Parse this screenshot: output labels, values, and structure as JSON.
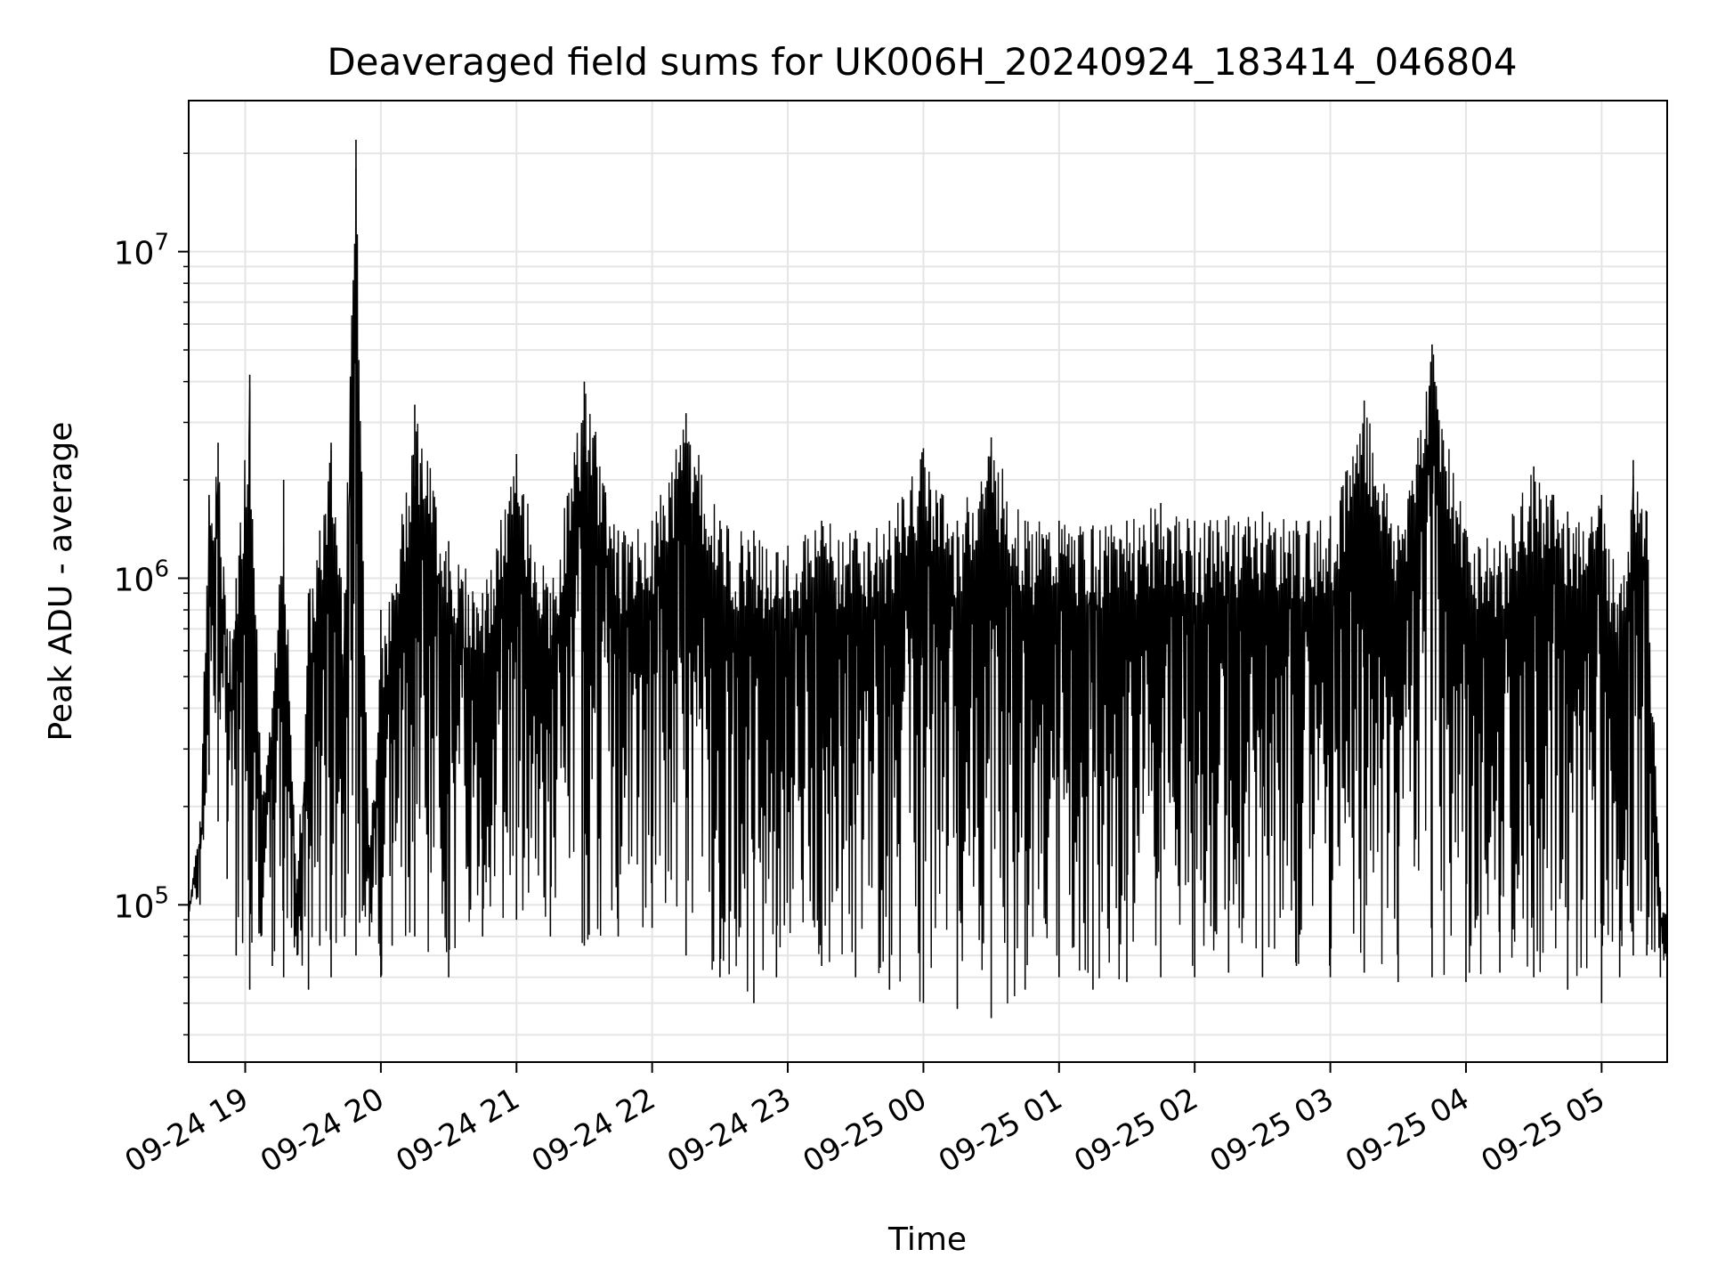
{
  "chart_data": {
    "type": "line",
    "title": "Deaveraged field sums for UK006H_20240924_183414_046804",
    "xlabel": "Time",
    "ylabel": "Peak ADU - average",
    "xscale": "time",
    "yscale": "log",
    "xlim": [
      "2024-09-24 18:35",
      "2024-09-25 05:29"
    ],
    "ylim": [
      33000,
      29000000
    ],
    "grid": true,
    "line_color": "#000000",
    "x_ticks": [
      {
        "value": "2024-09-24 19:00",
        "label": "09-24 19"
      },
      {
        "value": "2024-09-24 20:00",
        "label": "09-24 20"
      },
      {
        "value": "2024-09-24 21:00",
        "label": "09-24 21"
      },
      {
        "value": "2024-09-24 22:00",
        "label": "09-24 22"
      },
      {
        "value": "2024-09-24 23:00",
        "label": "09-24 23"
      },
      {
        "value": "2024-09-25 00:00",
        "label": "09-25 00"
      },
      {
        "value": "2024-09-25 01:00",
        "label": "09-25 01"
      },
      {
        "value": "2024-09-25 02:00",
        "label": "09-25 02"
      },
      {
        "value": "2024-09-25 03:00",
        "label": "09-25 03"
      },
      {
        "value": "2024-09-25 04:00",
        "label": "09-25 04"
      },
      {
        "value": "2024-09-25 05:00",
        "label": "09-25 05"
      }
    ],
    "y_ticks": [
      {
        "value": 100000,
        "base": "10",
        "exp": "5"
      },
      {
        "value": 1000000,
        "base": "10",
        "exp": "6"
      },
      {
        "value": 10000000,
        "base": "10",
        "exp": "7"
      }
    ],
    "series": [
      {
        "x": [
          "2024-09-24 18:35",
          "2024-09-24 18:40",
          "2024-09-24 18:44",
          "2024-09-24 18:48",
          "2024-09-24 18:52",
          "2024-09-24 18:56",
          "2024-09-24 19:02",
          "2024-09-24 19:07",
          "2024-09-24 19:12",
          "2024-09-24 19:17",
          "2024-09-24 19:23",
          "2024-09-24 19:28",
          "2024-09-24 19:33",
          "2024-09-24 19:38",
          "2024-09-24 19:44",
          "2024-09-24 19:49",
          "2024-09-24 19:55",
          "2024-09-24 20:00",
          "2024-09-24 20:05",
          "2024-09-24 20:15",
          "2024-09-24 20:30",
          "2024-09-24 20:45",
          "2024-09-24 21:00",
          "2024-09-24 21:15",
          "2024-09-24 21:30",
          "2024-09-24 21:45",
          "2024-09-24 22:00",
          "2024-09-24 22:15",
          "2024-09-24 22:30",
          "2024-09-24 22:45",
          "2024-09-24 22:55",
          "2024-09-24 23:15",
          "2024-09-24 23:30",
          "2024-09-24 23:45",
          "2024-09-25 00:00",
          "2024-09-25 00:15",
          "2024-09-25 00:30",
          "2024-09-25 00:45",
          "2024-09-25 01:00",
          "2024-09-25 01:15",
          "2024-09-25 01:30",
          "2024-09-25 01:45",
          "2024-09-25 02:00",
          "2024-09-25 02:15",
          "2024-09-25 02:30",
          "2024-09-25 02:45",
          "2024-09-25 03:00",
          "2024-09-25 03:15",
          "2024-09-25 03:30",
          "2024-09-25 03:45",
          "2024-09-25 04:00",
          "2024-09-25 04:15",
          "2024-09-25 04:30",
          "2024-09-25 04:45",
          "2024-09-25 05:00",
          "2024-09-25 05:08",
          "2024-09-25 05:14",
          "2024-09-25 05:20",
          "2024-09-25 05:26",
          "2024-09-25 05:29"
        ],
        "y": [
          95000,
          180000,
          1800000,
          2600000,
          700000,
          1000000,
          4200000,
          250000,
          400000,
          2000000,
          120000,
          900000,
          1400000,
          2600000,
          900000,
          22000000,
          150000,
          800000,
          900000,
          3400000,
          1300000,
          900000,
          2400000,
          900000,
          4000000,
          1400000,
          1500000,
          3200000,
          1500000,
          1400000,
          1200000,
          1500000,
          1400000,
          1500000,
          2500000,
          1500000,
          2700000,
          1500000,
          1500000,
          1450000,
          1500000,
          1700000,
          1500000,
          1550000,
          1600000,
          1500000,
          1550000,
          3500000,
          1450000,
          5200000,
          1400000,
          1300000,
          2200000,
          1600000,
          1800000,
          900000,
          2300000,
          1600000,
          110000,
          90000
        ],
        "y_min": [
          95000,
          100000,
          250000,
          180000,
          120000,
          70000,
          55000,
          80000,
          65000,
          60000,
          70000,
          55000,
          75000,
          60000,
          80000,
          70000,
          80000,
          60000,
          75000,
          80000,
          60000,
          80000,
          90000,
          80000,
          75000,
          80000,
          85000,
          70000,
          60000,
          50000,
          60000,
          65000,
          60000,
          55000,
          50000,
          48000,
          45000,
          55000,
          60000,
          55000,
          58000,
          60000,
          60000,
          62000,
          60000,
          65000,
          60000,
          62000,
          58000,
          60000,
          58000,
          62000,
          60000,
          55000,
          50000,
          60000,
          70000,
          70000,
          60000,
          65000
        ]
      }
    ]
  }
}
